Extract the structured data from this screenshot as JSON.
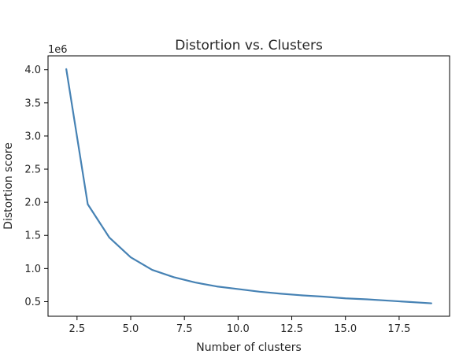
{
  "chart_data": {
    "type": "line",
    "title": "Distortion vs. Clusters",
    "xlabel": "Number of clusters",
    "ylabel": "Distortion score",
    "y_offset_label": "1e6",
    "xlim": [
      1.15,
      19.85
    ],
    "ylim": [
      0.28,
      4.21
    ],
    "x_ticks": [
      2.5,
      5.0,
      7.5,
      10.0,
      12.5,
      15.0,
      17.5
    ],
    "x_tick_labels": [
      "2.5",
      "5.0",
      "7.5",
      "10.0",
      "12.5",
      "15.0",
      "17.5"
    ],
    "y_ticks": [
      0.5,
      1.0,
      1.5,
      2.0,
      2.5,
      3.0,
      3.5,
      4.0
    ],
    "y_tick_labels": [
      "0.5",
      "1.0",
      "1.5",
      "2.0",
      "2.5",
      "3.0",
      "3.5",
      "4.0"
    ],
    "grid": false,
    "series": [
      {
        "color": "#4682B4",
        "x": [
          2,
          3,
          4,
          5,
          6,
          7,
          8,
          9,
          10,
          11,
          12,
          13,
          14,
          15,
          16,
          17,
          18,
          19
        ],
        "y": [
          4.01,
          1.97,
          1.47,
          1.17,
          0.98,
          0.87,
          0.79,
          0.73,
          0.69,
          0.65,
          0.62,
          0.595,
          0.575,
          0.55,
          0.535,
          0.515,
          0.495,
          0.475
        ]
      }
    ]
  }
}
